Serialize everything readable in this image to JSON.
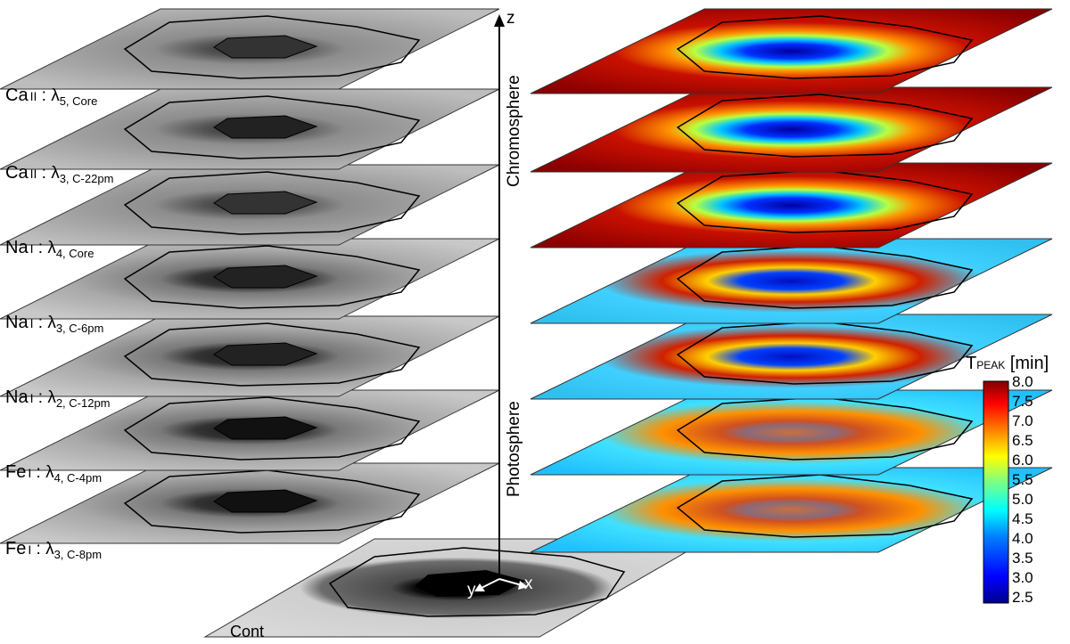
{
  "layer_labels": [
    {
      "element": "Ca",
      "ion": "II",
      "lambda": "λ",
      "sub": "5, Core"
    },
    {
      "element": "Ca",
      "ion": "II",
      "lambda": "λ",
      "sub": "3, C-22pm"
    },
    {
      "element": "Na",
      "ion": "I",
      "lambda": "λ",
      "sub": "4, Core"
    },
    {
      "element": "Na",
      "ion": "I",
      "lambda": "λ",
      "sub": "3, C-6pm"
    },
    {
      "element": "Na",
      "ion": "I",
      "lambda": "λ",
      "sub": "2, C-12pm"
    },
    {
      "element": "Fe",
      "ion": "I",
      "lambda": "λ",
      "sub": "4, C-4pm"
    },
    {
      "element": "Fe",
      "ion": "I",
      "lambda": "λ",
      "sub": "3, C-8pm"
    }
  ],
  "continuum_label": "Cont",
  "axis": {
    "z": "z",
    "x": "x",
    "y": "y"
  },
  "region_labels": {
    "upper": "Chromosphere",
    "lower": "Photosphere"
  },
  "colorbar": {
    "title_main": "T",
    "title_sub": "PEAK",
    "title_unit": "[min]",
    "min": 2.5,
    "max": 8.0,
    "ticks": [
      "8.0",
      "7.5",
      "7.0",
      "6.5",
      "6.0",
      "5.5",
      "5.0",
      "4.5",
      "4.0",
      "3.5",
      "3.0",
      "2.5"
    ],
    "colormap": [
      "#00008f",
      "#0000ff",
      "#0080ff",
      "#00ffff",
      "#80ff80",
      "#ffff00",
      "#ff8000",
      "#ff0000",
      "#800000"
    ]
  }
}
